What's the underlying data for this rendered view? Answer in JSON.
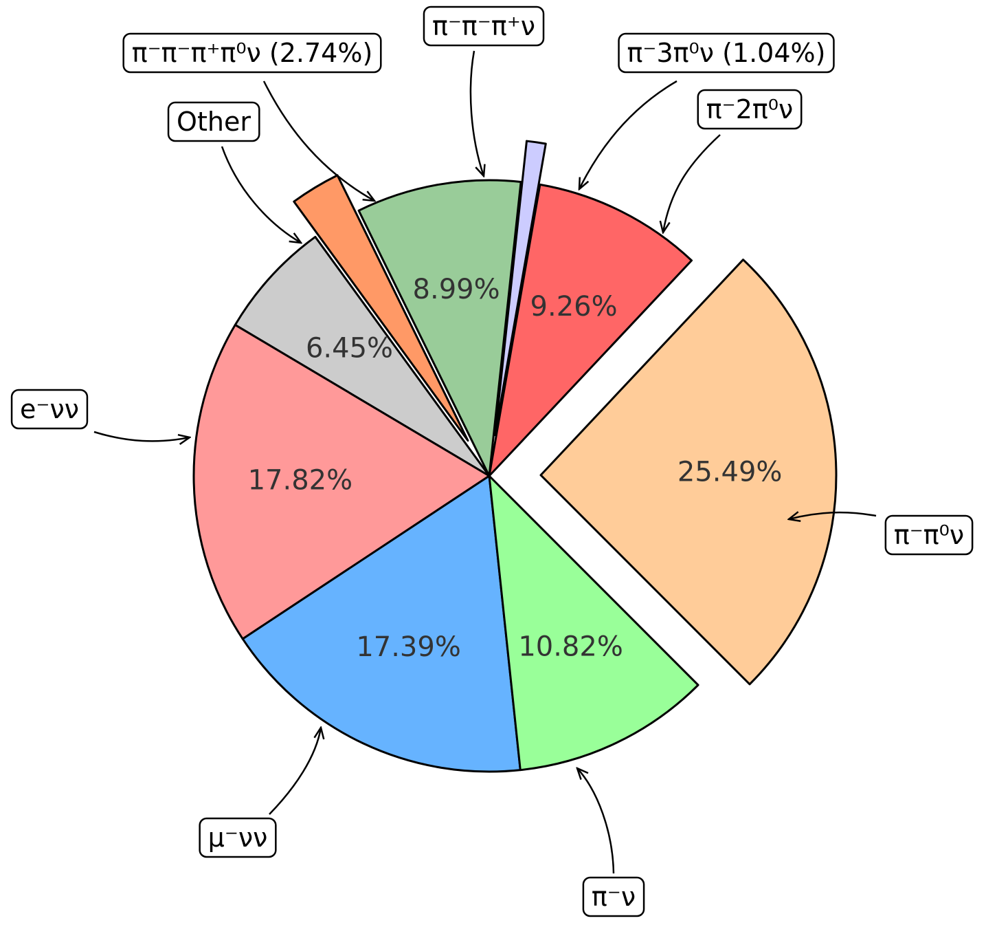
{
  "chart_data": {
    "type": "pie",
    "title": "",
    "slices": [
      {
        "label": "π⁻π⁰ν",
        "value": 25.49,
        "pct_label": "25.49%",
        "color": "#ffcc99",
        "explode": true
      },
      {
        "label": "π⁻2π⁰ν",
        "value": 9.26,
        "pct_label": "9.26%",
        "color": "#ff6666",
        "explode": false
      },
      {
        "label": "π⁻3π⁰ν (1.04%)",
        "value": 1.04,
        "pct_label": "",
        "color": "#ccccff",
        "explode": true
      },
      {
        "label": "π⁻π⁻π⁺ν",
        "value": 8.99,
        "pct_label": "8.99%",
        "color": "#99cc99",
        "explode": false
      },
      {
        "label": "π⁻π⁻π⁺π⁰ν (2.74%)",
        "value": 2.74,
        "pct_label": "",
        "color": "#ff9966",
        "explode": true
      },
      {
        "label": "Other",
        "value": 6.45,
        "pct_label": "6.45%",
        "color": "#cccccc",
        "explode": false
      },
      {
        "label": "e⁻νν",
        "value": 17.82,
        "pct_label": "17.82%",
        "color": "#ff9999",
        "explode": false
      },
      {
        "label": "μ⁻νν",
        "value": 17.39,
        "pct_label": "17.39%",
        "color": "#66b3ff",
        "explode": false
      },
      {
        "label": "π⁻ν",
        "value": 10.82,
        "pct_label": "10.82%",
        "color": "#99ff99",
        "explode": false
      }
    ]
  }
}
